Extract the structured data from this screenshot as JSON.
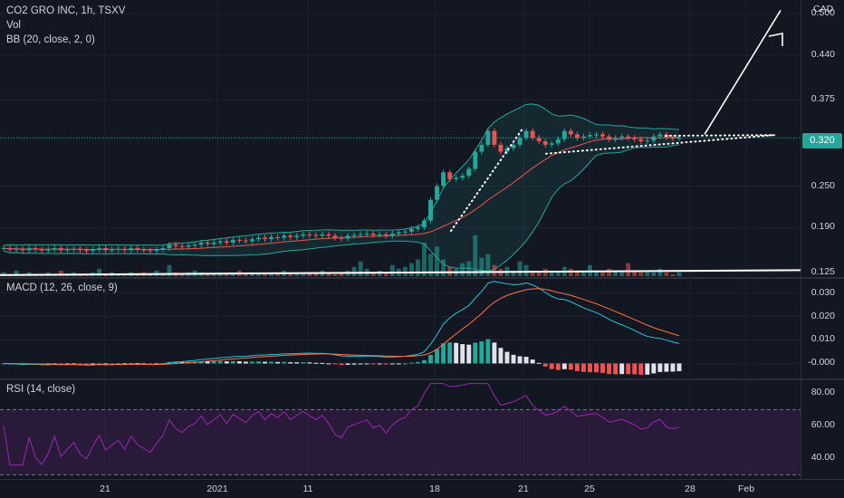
{
  "symbol_title": "CO2 GRO INC, 1h, TSXV",
  "vol_label": "Vol",
  "bb_label": "BB (20, close, 2, 0)",
  "macd_label": "MACD (12, 26, close, 9)",
  "rsi_label": "RSI (14, close)",
  "currency": "CAD",
  "last_price_label": "0.320",
  "colors": {
    "background": "#131722",
    "up": "#26a69a",
    "down": "#ef5350",
    "bb_band": "#26a69a",
    "bb_basis": "#ef5350",
    "macd_line": "#26c6da",
    "signal_line": "#ff7043",
    "rsi_line": "#9c27b0",
    "rsi_fill": "#3b1d4a",
    "hist_light": "#e0e3eb",
    "annotation": "#ffffff"
  },
  "chart_data": [
    {
      "type": "candlestick",
      "title": "CO2 GRO INC, 1h, TSXV",
      "y_ticks": [
        "0.500",
        "0.440",
        "0.375",
        "0.320",
        "0.250",
        "0.190",
        "0.125"
      ],
      "x_ticks": [
        "21",
        "2021",
        "11",
        "18",
        "21",
        "25",
        "28",
        "Feb"
      ],
      "last_price": 0.32,
      "ylim": [
        0.118,
        0.52
      ],
      "series_note": "approximate hourly price path",
      "close": [
        0.16,
        0.158,
        0.159,
        0.157,
        0.16,
        0.158,
        0.157,
        0.158,
        0.16,
        0.157,
        0.158,
        0.159,
        0.157,
        0.156,
        0.158,
        0.16,
        0.157,
        0.158,
        0.159,
        0.157,
        0.16,
        0.158,
        0.157,
        0.156,
        0.158,
        0.16,
        0.165,
        0.163,
        0.162,
        0.164,
        0.165,
        0.168,
        0.166,
        0.168,
        0.17,
        0.168,
        0.172,
        0.171,
        0.17,
        0.173,
        0.175,
        0.173,
        0.176,
        0.175,
        0.178,
        0.176,
        0.178,
        0.18,
        0.179,
        0.178,
        0.18,
        0.178,
        0.175,
        0.174,
        0.178,
        0.179,
        0.18,
        0.181,
        0.179,
        0.18,
        0.178,
        0.181,
        0.183,
        0.184,
        0.188,
        0.19,
        0.2,
        0.23,
        0.25,
        0.27,
        0.26,
        0.262,
        0.265,
        0.275,
        0.3,
        0.31,
        0.33,
        0.31,
        0.3,
        0.305,
        0.31,
        0.32,
        0.33,
        0.32,
        0.315,
        0.31,
        0.312,
        0.318,
        0.33,
        0.325,
        0.32,
        0.322,
        0.324,
        0.325,
        0.322,
        0.318,
        0.32,
        0.322,
        0.32,
        0.318,
        0.315,
        0.316,
        0.322,
        0.325,
        0.32,
        0.319,
        0.32
      ]
    },
    {
      "type": "bar",
      "name": "Vol",
      "values": [
        2,
        1,
        3,
        1,
        2,
        1,
        1,
        2,
        1,
        3,
        1,
        2,
        1,
        1,
        2,
        4,
        1,
        2,
        1,
        1,
        2,
        1,
        2,
        1,
        3,
        1,
        6,
        2,
        1,
        2,
        3,
        2,
        1,
        1,
        2,
        1,
        2,
        3,
        1,
        2,
        2,
        1,
        2,
        1,
        3,
        2,
        2,
        1,
        2,
        2,
        3,
        2,
        1,
        2,
        3,
        5,
        8,
        4,
        2,
        3,
        2,
        6,
        4,
        5,
        7,
        9,
        18,
        12,
        16,
        9,
        5,
        4,
        7,
        8,
        22,
        10,
        12,
        6,
        4,
        5,
        3,
        8,
        6,
        3,
        2,
        4,
        3,
        2,
        5,
        4,
        3,
        2,
        6,
        3,
        2,
        4,
        3,
        2,
        7,
        3,
        2,
        3,
        2,
        4,
        2,
        1,
        2
      ]
    },
    {
      "type": "line",
      "name": "MACD",
      "y_ticks": [
        "0.030",
        "0.020",
        "0.010",
        "-0.000"
      ],
      "ylim": [
        -0.006,
        0.036
      ]
    },
    {
      "type": "line",
      "name": "RSI",
      "y_ticks": [
        "80.00",
        "60.00",
        "40.00"
      ],
      "ylim": [
        28,
        88
      ],
      "bands": [
        70,
        30
      ]
    }
  ]
}
